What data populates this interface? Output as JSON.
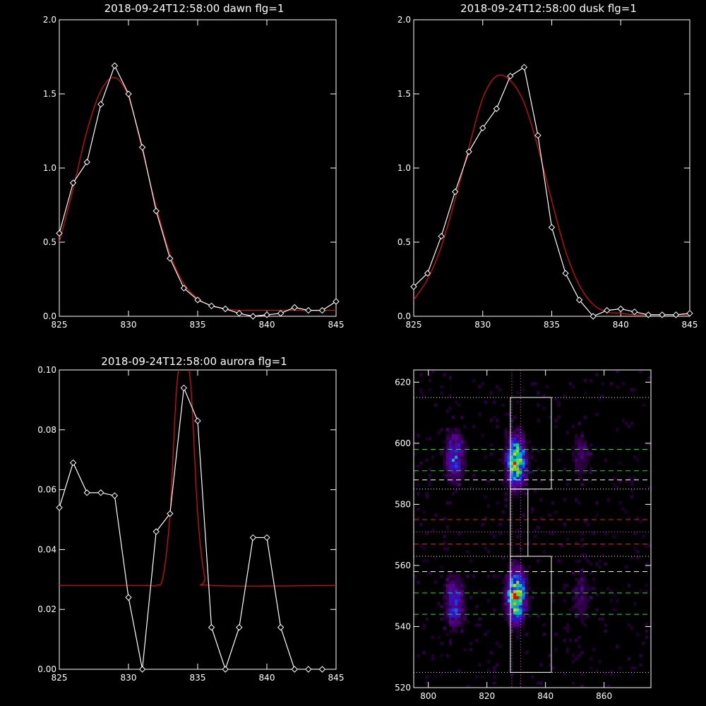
{
  "colors": {
    "background": "#000000",
    "axes": "#ffffff",
    "observed": "#ffffff",
    "fit": "#d01010",
    "dashed_green": "#22dd22",
    "dashed_white": "#ffffff",
    "dashed_red": "#dd2020",
    "dotted_magenta": "#ee44ee"
  },
  "chart_data": [
    {
      "type": "line",
      "title": "2018-09-24T12:58:00 dawn flg=1",
      "xlim": [
        825,
        845
      ],
      "ylim": [
        0,
        2.0
      ],
      "xticks": [
        "825",
        "830",
        "835",
        "840",
        "845"
      ],
      "yticks": [
        "0.0",
        "0.5",
        "1.0",
        "1.5",
        "2.0"
      ],
      "series": [
        {
          "role": "observed",
          "x": [
            825,
            826,
            827,
            828,
            829,
            830,
            831,
            832,
            833,
            834,
            835,
            836,
            837,
            838,
            839,
            840,
            841,
            842,
            843,
            844,
            845
          ],
          "y": [
            0.56,
            0.9,
            1.04,
            1.43,
            1.69,
            1.5,
            1.14,
            0.71,
            0.39,
            0.19,
            0.11,
            0.07,
            0.05,
            0.02,
            0.0,
            0.01,
            0.02,
            0.06,
            0.04,
            0.04,
            0.1
          ]
        },
        {
          "role": "fit",
          "x": [
            825,
            826,
            827,
            828,
            829,
            830,
            831,
            832,
            833,
            834,
            835,
            836,
            837,
            838,
            839,
            840,
            841,
            842,
            843,
            844,
            845
          ],
          "y": [
            0.5,
            0.86,
            1.25,
            1.52,
            1.61,
            1.48,
            1.12,
            0.74,
            0.42,
            0.22,
            0.12,
            0.07,
            0.05,
            0.04,
            0.04,
            0.04,
            0.04,
            0.04,
            0.04,
            0.04,
            0.04
          ]
        }
      ]
    },
    {
      "type": "line",
      "title": "2018-09-24T12:58:00 dusk flg=1",
      "xlim": [
        825,
        845
      ],
      "ylim": [
        0,
        2.0
      ],
      "xticks": [
        "825",
        "830",
        "835",
        "840",
        "845"
      ],
      "yticks": [
        "0.0",
        "0.5",
        "1.0",
        "1.5",
        "2.0"
      ],
      "series": [
        {
          "role": "observed",
          "x": [
            825,
            826,
            827,
            828,
            829,
            830,
            831,
            832,
            833,
            834,
            835,
            836,
            837,
            838,
            839,
            840,
            841,
            842,
            843,
            844,
            845
          ],
          "y": [
            0.2,
            0.29,
            0.54,
            0.84,
            1.11,
            1.27,
            1.4,
            1.62,
            1.68,
            1.22,
            0.6,
            0.29,
            0.11,
            0.0,
            0.04,
            0.05,
            0.03,
            0.01,
            0.01,
            0.01,
            0.02
          ]
        },
        {
          "role": "fit",
          "x": [
            825,
            826,
            827,
            828,
            829,
            830,
            831,
            832,
            833,
            834,
            835,
            836,
            837,
            838,
            839,
            840,
            841,
            842,
            843,
            844,
            845
          ],
          "y": [
            0.11,
            0.25,
            0.47,
            0.79,
            1.14,
            1.47,
            1.62,
            1.59,
            1.44,
            1.14,
            0.78,
            0.44,
            0.21,
            0.08,
            0.03,
            0.02,
            0.01,
            0.01,
            0.01,
            0.01,
            0.01
          ]
        }
      ]
    },
    {
      "type": "line",
      "title": "2018-09-24T12:58:00 aurora flg=1",
      "xlim": [
        825,
        845
      ],
      "ylim": [
        0,
        0.1
      ],
      "xticks": [
        "825",
        "830",
        "835",
        "840",
        "845"
      ],
      "yticks": [
        "0.00",
        "0.02",
        "0.04",
        "0.06",
        "0.08",
        "0.10"
      ],
      "series": [
        {
          "role": "observed",
          "x": [
            825,
            826,
            827,
            828,
            829,
            830,
            831,
            832,
            833,
            834,
            835,
            836,
            837,
            838,
            839,
            840,
            841,
            842,
            843,
            844
          ],
          "y": [
            0.054,
            0.069,
            0.059,
            0.059,
            0.058,
            0.024,
            0.0,
            0.046,
            0.052,
            0.094,
            0.083,
            0.014,
            0.0,
            0.014,
            0.044,
            0.044,
            0.014,
            0.0,
            0.0,
            0.0
          ]
        },
        {
          "role": "fit",
          "x": [
            825,
            831,
            832,
            832.5,
            833,
            833.5,
            834,
            834.5,
            835,
            835.5,
            836,
            845
          ],
          "y": [
            0.028,
            0.028,
            0.028,
            0.031,
            0.052,
            0.095,
            0.105,
            0.095,
            0.052,
            0.031,
            0.028,
            0.028
          ]
        }
      ]
    },
    {
      "type": "heatmap",
      "xlim": [
        795,
        876
      ],
      "ylim": [
        520,
        624
      ],
      "xticks": [
        "800",
        "820",
        "840",
        "860"
      ],
      "yticks": [
        "520",
        "540",
        "560",
        "580",
        "600",
        "620"
      ],
      "blobs": [
        {
          "x": 809,
          "y": 596,
          "intensity": 0.45
        },
        {
          "x": 809,
          "y": 548,
          "intensity": 0.45
        },
        {
          "x": 830,
          "y": 594,
          "intensity": 0.9
        },
        {
          "x": 830,
          "y": 550,
          "intensity": 0.95
        },
        {
          "x": 852,
          "y": 596,
          "intensity": 0.18
        },
        {
          "x": 852,
          "y": 550,
          "intensity": 0.18
        }
      ],
      "boxes": [
        {
          "x": [
            828,
            842
          ],
          "y": [
            585,
            615
          ]
        },
        {
          "x": [
            828,
            834
          ],
          "y": [
            563,
            585
          ]
        },
        {
          "x": [
            828,
            842
          ],
          "y": [
            525,
            563
          ]
        }
      ],
      "vlines_dotted_magenta": [
        828.5,
        831.5
      ],
      "hlines": [
        {
          "y": 615,
          "style": "dotted-white"
        },
        {
          "y": 598,
          "style": "dashed-green"
        },
        {
          "y": 591,
          "style": "dashed-green"
        },
        {
          "y": 588,
          "style": "dashed-white"
        },
        {
          "y": 585,
          "style": "dotted-white"
        },
        {
          "y": 575,
          "style": "dashed-red"
        },
        {
          "y": 571,
          "style": "dotted-magenta"
        },
        {
          "y": 567,
          "style": "dashed-red"
        },
        {
          "y": 563,
          "style": "dotted-white"
        },
        {
          "y": 558,
          "style": "dashed-white"
        },
        {
          "y": 551,
          "style": "dashed-green"
        },
        {
          "y": 544,
          "style": "dashed-green"
        },
        {
          "y": 525,
          "style": "dotted-white"
        }
      ]
    }
  ]
}
